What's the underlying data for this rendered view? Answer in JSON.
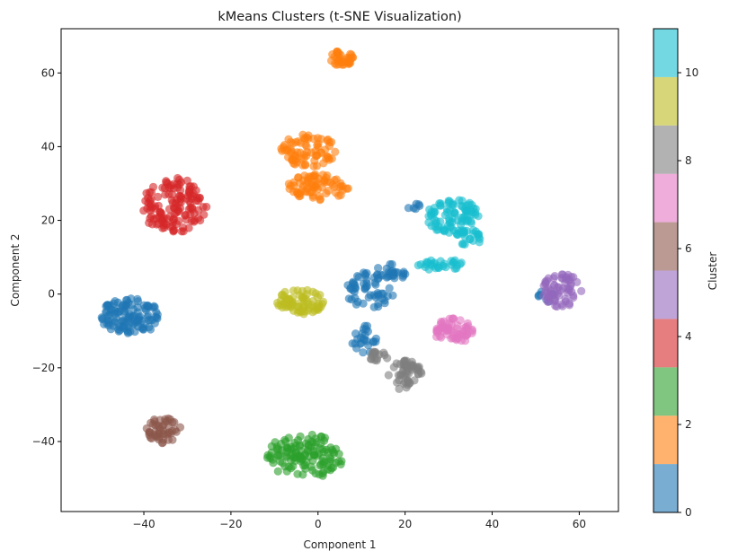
{
  "chart_data": {
    "type": "scatter",
    "title": "kMeans Clusters (t-SNE Visualization)",
    "xlabel": "Component 1",
    "ylabel": "Component 2",
    "xlim": [
      -59,
      69
    ],
    "ylim": [
      -59,
      72
    ],
    "xticks": [
      -40,
      -20,
      0,
      20,
      40,
      60
    ],
    "yticks": [
      -40,
      -20,
      0,
      20,
      40,
      60
    ],
    "xtick_labels": [
      "−40",
      "−20",
      "0",
      "20",
      "40",
      "60"
    ],
    "ytick_labels": [
      "−40",
      "−20",
      "0",
      "20",
      "40",
      "60"
    ],
    "grid": false,
    "marker_alpha": 0.6,
    "colorbar": {
      "label": "Cluster",
      "range": [
        0,
        11
      ],
      "ticks": [
        0,
        2,
        4,
        6,
        8,
        10
      ],
      "tick_labels": [
        "0",
        "2",
        "4",
        "6",
        "8",
        "10"
      ],
      "colors": [
        "#1f77b4",
        "#ff7f0e",
        "#2ca02c",
        "#d62728",
        "#9467bd",
        "#8c564b",
        "#e377c2",
        "#7f7f7f",
        "#bcbd22",
        "#17becf"
      ]
    },
    "clusters": [
      {
        "cluster": 0,
        "color": "#1f77b4",
        "groups": [
          {
            "cx": -43,
            "cy": -6,
            "rx": 7,
            "ry": 5,
            "n": 120
          },
          {
            "cx": 12,
            "cy": 1,
            "rx": 6,
            "ry": 5,
            "n": 55
          },
          {
            "cx": 17,
            "cy": 6,
            "rx": 4,
            "ry": 2.5,
            "n": 25
          },
          {
            "cx": 11,
            "cy": -12,
            "rx": 3.5,
            "ry": 4,
            "n": 25
          },
          {
            "cx": 53,
            "cy": 0,
            "rx": 3,
            "ry": 2,
            "n": 8
          },
          {
            "cx": 22,
            "cy": 24,
            "rx": 1.5,
            "ry": 2,
            "n": 6
          }
        ]
      },
      {
        "cluster": 1,
        "color": "#ff7f0e",
        "groups": [
          {
            "cx": 5.5,
            "cy": 64,
            "rx": 3,
            "ry": 2,
            "n": 35
          },
          {
            "cx": -2,
            "cy": 39,
            "rx": 6.5,
            "ry": 4.5,
            "n": 75
          },
          {
            "cx": 0,
            "cy": 29,
            "rx": 7,
            "ry": 3.5,
            "n": 75
          }
        ]
      },
      {
        "cluster": 2,
        "color": "#2ca02c",
        "groups": [
          {
            "cx": -3,
            "cy": -44,
            "rx": 9,
            "ry": 6,
            "n": 130
          }
        ]
      },
      {
        "cluster": 3,
        "color": "#d62728",
        "groups": [
          {
            "cx": -33,
            "cy": 24,
            "rx": 7.5,
            "ry": 7.5,
            "n": 135
          }
        ]
      },
      {
        "cluster": 4,
        "color": "#9467bd",
        "groups": [
          {
            "cx": 56,
            "cy": 1,
            "rx": 4.5,
            "ry": 4.5,
            "n": 65
          }
        ]
      },
      {
        "cluster": 5,
        "color": "#8c564b",
        "groups": [
          {
            "cx": -35.5,
            "cy": -37,
            "rx": 4,
            "ry": 3.5,
            "n": 50
          }
        ]
      },
      {
        "cluster": 6,
        "color": "#e377c2",
        "groups": [
          {
            "cx": 31,
            "cy": -10,
            "rx": 4.5,
            "ry": 3.5,
            "n": 65
          }
        ]
      },
      {
        "cluster": 7,
        "color": "#7f7f7f",
        "groups": [
          {
            "cx": 20,
            "cy": -22,
            "rx": 4,
            "ry": 4,
            "n": 55
          },
          {
            "cx": 14,
            "cy": -17,
            "rx": 3,
            "ry": 1.5,
            "n": 15
          }
        ]
      },
      {
        "cluster": 8,
        "color": "#bcbd22",
        "groups": [
          {
            "cx": -4,
            "cy": -2,
            "rx": 5.5,
            "ry": 3.5,
            "n": 75
          }
        ]
      },
      {
        "cluster": 9,
        "color": "#17becf",
        "groups": [
          {
            "cx": 31,
            "cy": 21,
            "rx": 6,
            "ry": 5,
            "n": 90
          },
          {
            "cx": 28,
            "cy": 8,
            "rx": 5.5,
            "ry": 1.5,
            "n": 30
          },
          {
            "cx": 35,
            "cy": 15,
            "rx": 2.5,
            "ry": 2.5,
            "n": 20
          }
        ]
      }
    ]
  }
}
